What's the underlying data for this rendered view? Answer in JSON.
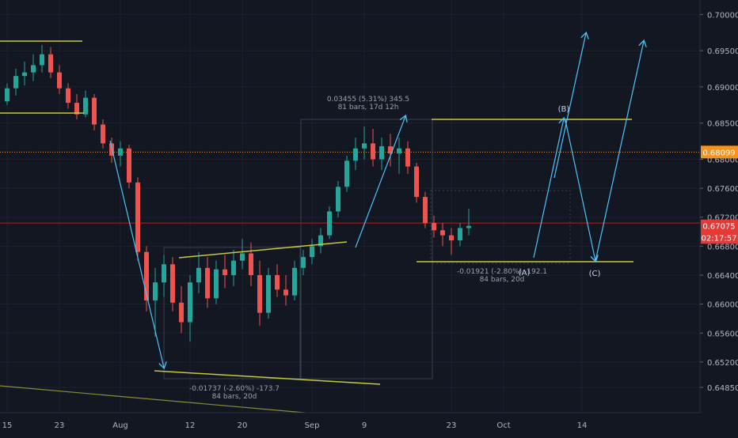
{
  "chart_data": {
    "type": "candlestick",
    "symbol_pair_quote_scale": "price",
    "ylim": [
      0.645,
      0.702
    ],
    "y_ticks": [
      "0.70000",
      "0.69500",
      "0.69000",
      "0.68500",
      "0.68000",
      "0.67600",
      "0.67200",
      "0.66800",
      "0.66400",
      "0.66000",
      "0.65600",
      "0.65200",
      "0.64850"
    ],
    "y_tick_values": [
      0.7,
      0.695,
      0.69,
      0.685,
      0.68,
      0.676,
      0.672,
      0.668,
      0.664,
      0.66,
      0.656,
      0.652,
      0.6485
    ],
    "x_ticks": [
      {
        "label": "15",
        "bar": 0
      },
      {
        "label": "23",
        "bar": 6
      },
      {
        "label": "Aug",
        "bar": 13
      },
      {
        "label": "12",
        "bar": 21
      },
      {
        "label": "20",
        "bar": 27
      },
      {
        "label": "Sep",
        "bar": 35
      },
      {
        "label": "9",
        "bar": 41
      },
      {
        "label": "23",
        "bar": 51
      },
      {
        "label": "Oct",
        "bar": 57
      },
      {
        "label": "14",
        "bar": 66
      }
    ],
    "bars": [
      [
        0.688,
        0.6905,
        0.6875,
        0.6898
      ],
      [
        0.6898,
        0.6925,
        0.6888,
        0.6915
      ],
      [
        0.6915,
        0.6935,
        0.6902,
        0.692
      ],
      [
        0.692,
        0.6945,
        0.6908,
        0.693
      ],
      [
        0.693,
        0.6958,
        0.692,
        0.6945
      ],
      [
        0.6945,
        0.6955,
        0.6912,
        0.692
      ],
      [
        0.692,
        0.693,
        0.689,
        0.6898
      ],
      [
        0.6898,
        0.6905,
        0.687,
        0.6878
      ],
      [
        0.6878,
        0.689,
        0.6855,
        0.6862
      ],
      [
        0.6862,
        0.6895,
        0.6858,
        0.6885
      ],
      [
        0.6885,
        0.689,
        0.684,
        0.6848
      ],
      [
        0.6848,
        0.6855,
        0.6815,
        0.6822
      ],
      [
        0.6822,
        0.683,
        0.6795,
        0.6805
      ],
      [
        0.6805,
        0.6825,
        0.679,
        0.6815
      ],
      [
        0.6815,
        0.682,
        0.676,
        0.6768
      ],
      [
        0.6768,
        0.6775,
        0.666,
        0.6672
      ],
      [
        0.6672,
        0.668,
        0.659,
        0.6605
      ],
      [
        0.6605,
        0.665,
        0.6555,
        0.663
      ],
      [
        0.663,
        0.6668,
        0.661,
        0.6655
      ],
      [
        0.6655,
        0.6665,
        0.659,
        0.6602
      ],
      [
        0.6602,
        0.6625,
        0.656,
        0.6575
      ],
      [
        0.6575,
        0.664,
        0.6548,
        0.663
      ],
      [
        0.663,
        0.6672,
        0.6615,
        0.665
      ],
      [
        0.665,
        0.6665,
        0.6595,
        0.6608
      ],
      [
        0.6608,
        0.666,
        0.66,
        0.6648
      ],
      [
        0.6648,
        0.6668,
        0.6622,
        0.664
      ],
      [
        0.664,
        0.6675,
        0.6625,
        0.666
      ],
      [
        0.666,
        0.669,
        0.6648,
        0.667
      ],
      [
        0.667,
        0.6685,
        0.6625,
        0.664
      ],
      [
        0.664,
        0.666,
        0.657,
        0.6588
      ],
      [
        0.6588,
        0.665,
        0.658,
        0.664
      ],
      [
        0.664,
        0.6655,
        0.661,
        0.662
      ],
      [
        0.662,
        0.664,
        0.6598,
        0.6612
      ],
      [
        0.6612,
        0.666,
        0.6605,
        0.665
      ],
      [
        0.665,
        0.6675,
        0.664,
        0.6665
      ],
      [
        0.6665,
        0.669,
        0.6655,
        0.668
      ],
      [
        0.668,
        0.6705,
        0.667,
        0.6695
      ],
      [
        0.6695,
        0.6735,
        0.669,
        0.6728
      ],
      [
        0.6728,
        0.677,
        0.672,
        0.6762
      ],
      [
        0.6762,
        0.6805,
        0.6755,
        0.6798
      ],
      [
        0.6798,
        0.683,
        0.6785,
        0.6815
      ],
      [
        0.6815,
        0.6845,
        0.68,
        0.6822
      ],
      [
        0.6822,
        0.6842,
        0.679,
        0.68
      ],
      [
        0.68,
        0.683,
        0.6785,
        0.6818
      ],
      [
        0.6818,
        0.6835,
        0.679,
        0.6808
      ],
      [
        0.6808,
        0.683,
        0.678,
        0.6815
      ],
      [
        0.6815,
        0.6825,
        0.678,
        0.679
      ],
      [
        0.679,
        0.6795,
        0.674,
        0.6748
      ],
      [
        0.6748,
        0.6755,
        0.6705,
        0.6712
      ],
      [
        0.6712,
        0.6722,
        0.6692,
        0.6702
      ],
      [
        0.6702,
        0.6712,
        0.668,
        0.6695
      ],
      [
        0.6695,
        0.6705,
        0.6668,
        0.6688
      ],
      [
        0.6688,
        0.6712,
        0.668,
        0.6705
      ],
      [
        0.6705,
        0.6732,
        0.6695,
        0.6708
      ]
    ],
    "horizontal_lines": [
      {
        "price": 0.681,
        "color": "#f7931a",
        "style": "dotted"
      },
      {
        "price": 0.6712,
        "color": "#b71c1c",
        "style": "solid"
      }
    ],
    "price_labels": [
      {
        "text": "0.68099",
        "price": 0.681,
        "bg": "#f7931a"
      },
      {
        "text": "0.67075",
        "price": 0.6708,
        "bg": "#e53935"
      },
      {
        "text": "02:17:57",
        "price": 0.6692,
        "bg": "#e53935"
      }
    ],
    "annotations": [
      {
        "line1": "0.03455 (5.31%) 345.5",
        "line2": "81 bars, 17d 12h"
      },
      {
        "line1": "-0.01737 (-2.60%) -173.7",
        "line2": "84 bars, 20d"
      },
      {
        "line1": "-0.01921 (-2.80%) -192.1",
        "line2": "84 bars, 20d"
      }
    ],
    "wave_labels": [
      "(B)",
      "(A)",
      "(C)"
    ],
    "colors": {
      "background": "#131722",
      "up": "#26a69a",
      "down": "#ef5350",
      "trendline": "#c7c93c",
      "arrows": "#4fc3f7"
    }
  }
}
